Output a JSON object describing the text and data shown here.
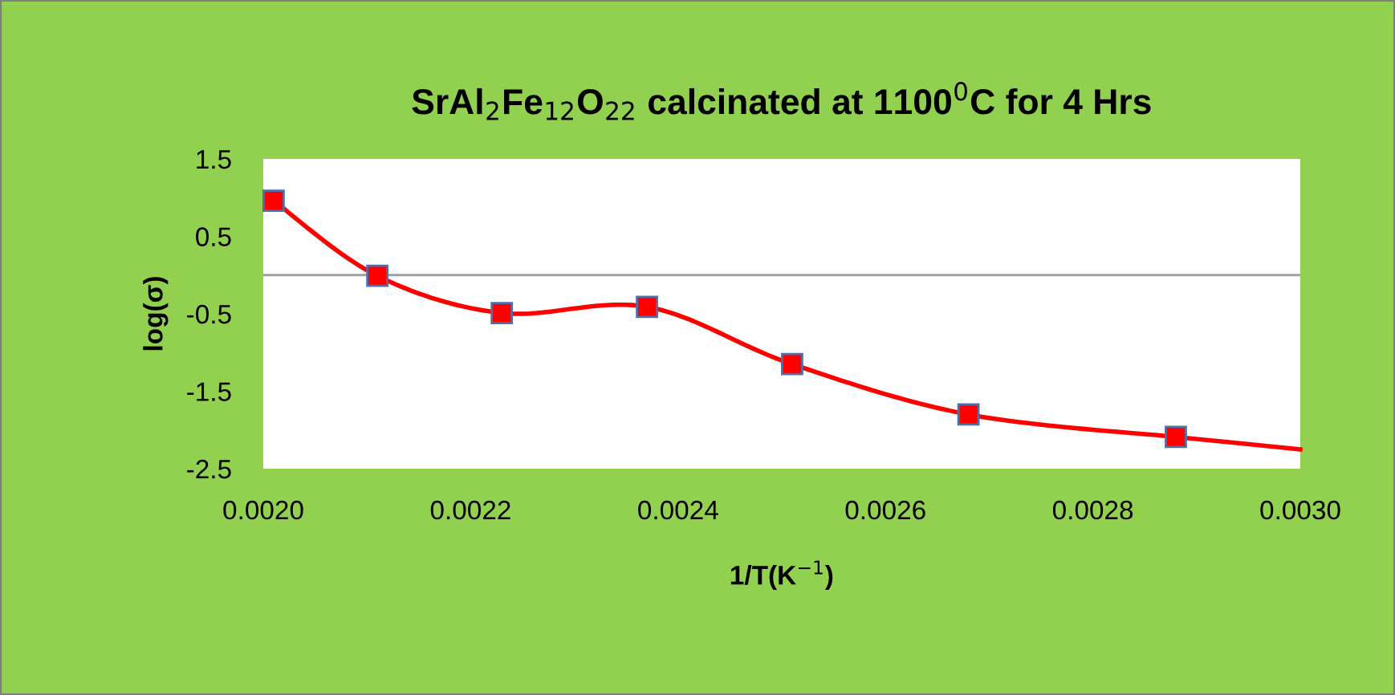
{
  "chart_data": {
    "type": "line",
    "title": "SrAl$_{2}$Fe$_{12}$O$_{22}$ calcinated at 1100$^{0}$C for 4 Hrs",
    "xlabel": "1/T(K$^{−1}$)",
    "ylabel": "log(σ)",
    "series": [
      {
        "color": "#ff0000",
        "marker": "square",
        "x": [
          0.00201,
          0.00211,
          0.00223,
          0.00237,
          0.00251,
          0.00268,
          0.00288
        ],
        "values": [
          0.96,
          -0.01,
          -0.49,
          -0.41,
          -1.15,
          -1.8,
          -2.09
        ]
      },
      {
        "color": "#ff0000",
        "marker": "none",
        "x": [
          0.00288,
          0.003
        ],
        "values": [
          -2.09,
          -2.25
        ]
      }
    ],
    "xlim": [
      0.002,
      0.003
    ],
    "xticks": [
      {
        "value": 0.002,
        "label": "0.0020"
      },
      {
        "value": 0.0022,
        "label": "0.0022"
      },
      {
        "value": 0.0024,
        "label": "0.0024"
      },
      {
        "value": 0.0026,
        "label": "0.0026"
      },
      {
        "value": 0.0028,
        "label": "0.0028"
      },
      {
        "value": 0.003,
        "label": "0.0030"
      }
    ],
    "ylim": [
      -2.5,
      1.5
    ],
    "yticks": [
      1.5,
      0.5,
      -0.5,
      -1.5,
      -2.5
    ],
    "ref_lines": [
      {
        "axis": "y",
        "value": 0,
        "color": "#a0a0a0"
      }
    ],
    "grid": false,
    "line_style": "solid"
  }
}
